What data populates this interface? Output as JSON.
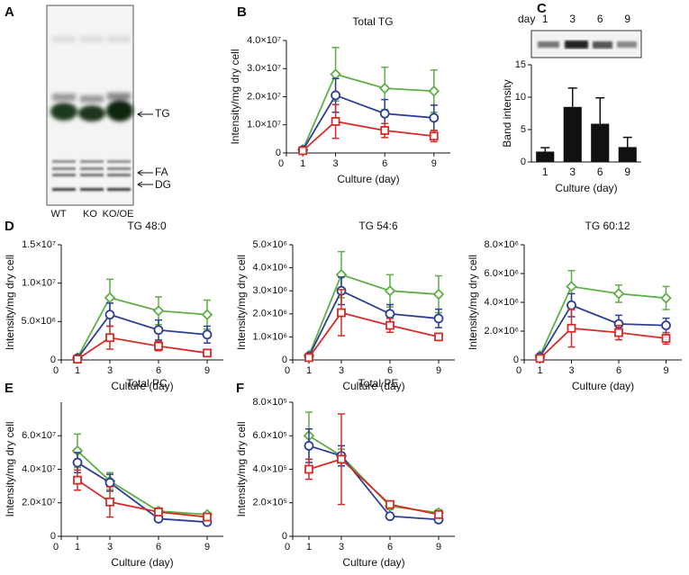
{
  "gel": {
    "panel_label": "A",
    "lanes": [
      "WT",
      "KO",
      "KO/OE"
    ],
    "bands": [
      "TG",
      "FA",
      "DG"
    ]
  },
  "chart_data": [
    {
      "type": "line",
      "panel_label": "B",
      "title": "Total TG",
      "xlabel": "Culture (day)",
      "ylabel": "Intensity/mg dry cell",
      "x": [
        1,
        3,
        6,
        9
      ],
      "xlim": [
        0,
        10
      ],
      "xticks": [
        0,
        1,
        3,
        6,
        9
      ],
      "ylim": [
        0,
        40000000
      ],
      "yticks": [
        0,
        {
          "value": 10000000,
          "label": "1.0×10⁷"
        },
        {
          "value": 20000000,
          "label": "2.0×10⁷"
        },
        {
          "value": 30000000,
          "label": "3.0×10⁷"
        },
        {
          "value": 40000000,
          "label": "4.0×10⁷"
        }
      ],
      "series": [
        {
          "color": "#5fae48",
          "marker": "diamond",
          "values": [
            1200000,
            28000000,
            23000000,
            22000000
          ],
          "errors": [
            300000,
            9500000,
            7500000,
            7500000
          ]
        },
        {
          "color": "#2e3f93",
          "marker": "circle",
          "values": [
            1000000,
            20500000,
            14000000,
            12500000
          ],
          "errors": [
            300000,
            6000000,
            5000000,
            4500000
          ]
        },
        {
          "color": "#d42d27",
          "marker": "square",
          "values": [
            800000,
            11200000,
            8000000,
            6000000
          ],
          "errors": [
            200000,
            6000000,
            2500000,
            2000000
          ]
        }
      ]
    },
    {
      "type": "bar",
      "panel_label": "C",
      "blot_label": "day",
      "xlabel": "Culture (day)",
      "ylabel": "Band intensity",
      "categories": [
        "1",
        "3",
        "6",
        "9"
      ],
      "values": [
        1.6,
        8.5,
        5.9,
        2.3
      ],
      "errors": [
        0.6,
        2.9,
        4.0,
        1.5
      ],
      "color": "#111111",
      "ylim": [
        0,
        15
      ],
      "yticks": [
        0,
        5,
        10,
        15
      ]
    },
    {
      "type": "line",
      "panel_label": "D",
      "title": "TG 48:0",
      "xlabel": "Culture (day)",
      "ylabel": "Intensity/mg dry cell",
      "x": [
        1,
        3,
        6,
        9
      ],
      "xlim": [
        0,
        10
      ],
      "xticks": [
        0,
        1,
        3,
        6,
        9
      ],
      "ylim": [
        0,
        15000000
      ],
      "yticks": [
        0,
        {
          "value": 5000000,
          "label": "5.0×10⁶"
        },
        {
          "value": 10000000,
          "label": "1.0×10⁷"
        },
        {
          "value": 15000000,
          "label": "1.5×10⁷"
        }
      ],
      "series": [
        {
          "color": "#5fae48",
          "marker": "diamond",
          "values": [
            300000,
            8100000,
            6400000,
            5900000
          ],
          "errors": [
            100000,
            2400000,
            1800000,
            1900000
          ]
        },
        {
          "color": "#2e3f93",
          "marker": "circle",
          "values": [
            200000,
            5900000,
            3900000,
            3300000
          ],
          "errors": [
            100000,
            1500000,
            1300000,
            1100000
          ]
        },
        {
          "color": "#d42d27",
          "marker": "square",
          "values": [
            100000,
            2900000,
            1800000,
            900000
          ],
          "errors": [
            50000,
            1500000,
            600000,
            300000
          ]
        }
      ]
    },
    {
      "type": "line",
      "title": "TG 54:6",
      "xlabel": "Culture (day)",
      "ylabel": "Intensity/mg dry cell",
      "x": [
        1,
        3,
        6,
        9
      ],
      "xlim": [
        0,
        10
      ],
      "xticks": [
        0,
        1,
        3,
        6,
        9
      ],
      "ylim": [
        0,
        5000000
      ],
      "yticks": [
        0,
        {
          "value": 1000000,
          "label": "1.0×10⁶"
        },
        {
          "value": 2000000,
          "label": "2.0×10⁶"
        },
        {
          "value": 3000000,
          "label": "3.0×10⁶"
        },
        {
          "value": 4000000,
          "label": "4.0×10⁶"
        },
        {
          "value": 5000000,
          "label": "5.0×10⁶"
        }
      ],
      "series": [
        {
          "color": "#5fae48",
          "marker": "diamond",
          "values": [
            200000,
            3700000,
            3000000,
            2850000
          ],
          "errors": [
            50000,
            1000000,
            700000,
            800000
          ]
        },
        {
          "color": "#2e3f93",
          "marker": "circle",
          "values": [
            150000,
            3000000,
            2000000,
            1800000
          ],
          "errors": [
            50000,
            600000,
            400000,
            400000
          ]
        },
        {
          "color": "#d42d27",
          "marker": "square",
          "values": [
            100000,
            2050000,
            1500000,
            1000000
          ],
          "errors": [
            30000,
            1000000,
            300000,
            150000
          ]
        }
      ]
    },
    {
      "type": "line",
      "title": "TG 60:12",
      "xlabel": "Culture (day)",
      "ylabel": "Intensity/mg dry cell",
      "x": [
        1,
        3,
        6,
        9
      ],
      "xlim": [
        0,
        10
      ],
      "xticks": [
        0,
        1,
        3,
        6,
        9
      ],
      "ylim": [
        0,
        8000000
      ],
      "yticks": [
        0,
        {
          "value": 2000000,
          "label": "2.0×10⁶"
        },
        {
          "value": 4000000,
          "label": "4.0×10⁶"
        },
        {
          "value": 6000000,
          "label": "6.0×10⁶"
        },
        {
          "value": 8000000,
          "label": "8.0×10⁶"
        }
      ],
      "series": [
        {
          "color": "#5fae48",
          "marker": "diamond",
          "values": [
            300000,
            5100000,
            4600000,
            4300000
          ],
          "errors": [
            100000,
            1100000,
            600000,
            800000
          ]
        },
        {
          "color": "#2e3f93",
          "marker": "circle",
          "values": [
            200000,
            3800000,
            2500000,
            2400000
          ],
          "errors": [
            50000,
            800000,
            600000,
            500000
          ]
        },
        {
          "color": "#d42d27",
          "marker": "square",
          "values": [
            100000,
            2200000,
            1900000,
            1500000
          ],
          "errors": [
            30000,
            1300000,
            500000,
            400000
          ]
        }
      ]
    },
    {
      "type": "line",
      "panel_label": "E",
      "title": "Total PC",
      "xlabel": "Culture (day)",
      "ylabel": "Intensity/mg dry cell",
      "x": [
        1,
        3,
        6,
        9
      ],
      "xlim": [
        0,
        10
      ],
      "xticks": [
        0,
        1,
        3,
        6,
        9
      ],
      "ylim": [
        0,
        80000000
      ],
      "yticks": [
        0,
        {
          "value": 20000000,
          "label": "2.0×10⁷"
        },
        {
          "value": 40000000,
          "label": "4.0×10⁷"
        },
        {
          "value": 60000000,
          "label": "6.0×10⁷"
        }
      ],
      "series": [
        {
          "color": "#5fae48",
          "marker": "diamond",
          "values": [
            51000000,
            33000000,
            15000000,
            13000000
          ],
          "errors": [
            10000000,
            5000000,
            2000000,
            1000000
          ]
        },
        {
          "color": "#2e3f93",
          "marker": "circle",
          "values": [
            44000000,
            32000000,
            10500000,
            8500000
          ],
          "errors": [
            6000000,
            5000000,
            1000000,
            1000000
          ]
        },
        {
          "color": "#d42d27",
          "marker": "square",
          "values": [
            33500000,
            20500000,
            14500000,
            11500000
          ],
          "errors": [
            6000000,
            9000000,
            2000000,
            1000000
          ]
        }
      ]
    },
    {
      "type": "line",
      "panel_label": "F",
      "title": "Total PE",
      "xlabel": "Culture (day)",
      "ylabel": "Intensity/mg dry cell",
      "x": [
        1,
        3,
        6,
        9
      ],
      "xlim": [
        0,
        10
      ],
      "xticks": [
        0,
        1,
        3,
        6,
        9
      ],
      "ylim": [
        0,
        800000
      ],
      "yticks": [
        0,
        {
          "value": 200000,
          "label": "2.0×10⁵"
        },
        {
          "value": 400000,
          "label": "4.0×10⁵"
        },
        {
          "value": 600000,
          "label": "6.0×10⁵"
        },
        {
          "value": 800000,
          "label": "8.0×10⁵"
        }
      ],
      "series": [
        {
          "color": "#5fae48",
          "marker": "diamond",
          "values": [
            600000,
            480000,
            180000,
            140000
          ],
          "errors": [
            140000,
            40000,
            20000,
            20000
          ]
        },
        {
          "color": "#2e3f93",
          "marker": "circle",
          "values": [
            540000,
            480000,
            120000,
            100000
          ],
          "errors": [
            100000,
            60000,
            10000,
            10000
          ]
        },
        {
          "color": "#d42d27",
          "marker": "square",
          "values": [
            400000,
            460000,
            190000,
            130000
          ],
          "errors": [
            60000,
            270000,
            20000,
            20000
          ]
        }
      ]
    }
  ]
}
